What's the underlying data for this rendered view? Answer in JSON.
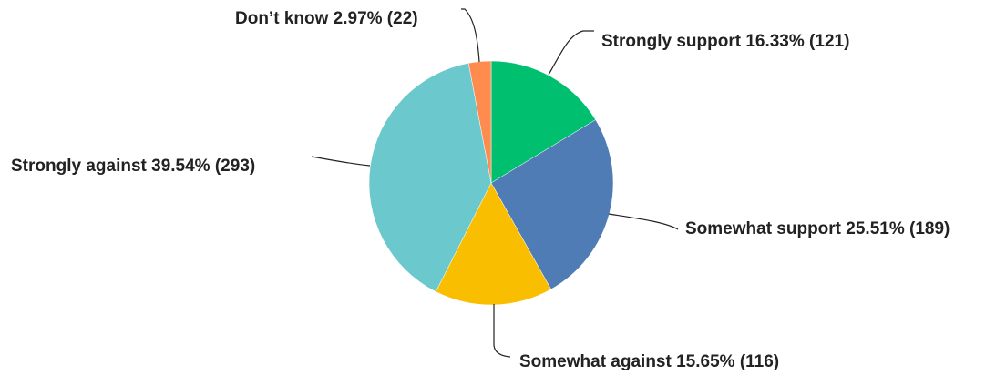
{
  "chart_data": {
    "type": "pie",
    "title": "",
    "slices": [
      {
        "name": "Strongly support",
        "percent": 16.33,
        "count": 121,
        "color": "#00bf6f",
        "label": "Strongly support 16.33% (121)"
      },
      {
        "name": "Somewhat support",
        "percent": 25.51,
        "count": 189,
        "color": "#507cb6",
        "label": "Somewhat support 25.51% (189)"
      },
      {
        "name": "Somewhat against",
        "percent": 15.65,
        "count": 116,
        "color": "#f9be00",
        "label": "Somewhat against 15.65% (116)"
      },
      {
        "name": "Strongly against",
        "percent": 39.54,
        "count": 293,
        "color": "#6bc8cd",
        "label": "Strongly against 39.54% (293)"
      },
      {
        "name": "Don’t know",
        "percent": 2.97,
        "count": 22,
        "color": "#ff8b4f",
        "label": "Don’t know 2.97% (22)"
      }
    ]
  }
}
